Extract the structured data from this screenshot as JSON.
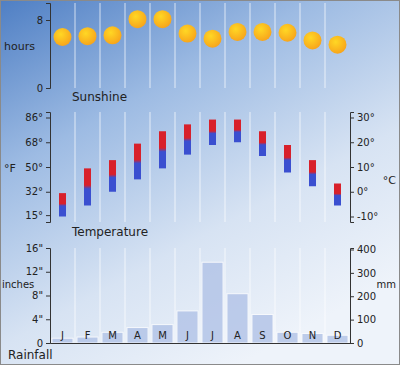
{
  "chart_data": [
    {
      "type": "scatter",
      "title": "Sunshine",
      "y_label": "hours",
      "values": [
        6.0,
        6.1,
        6.2,
        8.1,
        8.1,
        6.4,
        5.8,
        6.6,
        6.6,
        6.5,
        5.6,
        5.1
      ],
      "color": "#f7a21b",
      "marker": "circle",
      "ylim": [
        0,
        10
      ],
      "yticks": [
        0,
        8
      ],
      "grid": true
    },
    {
      "type": "range_bar",
      "title": "Temperature",
      "y_label": "°F",
      "y2_label": "°C",
      "series": [
        {
          "color": "#3a4fd0",
          "values": [
            14,
            22,
            32,
            41,
            49,
            59,
            66,
            68,
            58,
            46,
            36,
            22
          ]
        },
        {
          "color": "#d8202a",
          "values": [
            31,
            49,
            55,
            67,
            76,
            81,
            84.5,
            84.5,
            76,
            66,
            55,
            38
          ]
        }
      ],
      "ylim": [
        10,
        90
      ],
      "yticks": [
        {
          "value": 15,
          "label": "15°"
        },
        {
          "value": 32,
          "label": "32°"
        },
        {
          "value": 50,
          "label": "50°"
        },
        {
          "value": 68,
          "label": "68°"
        },
        {
          "value": 86,
          "label": "86°"
        }
      ],
      "y2lim": [
        -12.22,
        32.22
      ],
      "y2ticks": [
        {
          "value": -10,
          "label": "-10°"
        },
        {
          "value": 0,
          "label": "0°"
        },
        {
          "value": 10,
          "label": "10°"
        },
        {
          "value": 20,
          "label": "20°"
        },
        {
          "value": 30,
          "label": "30°"
        }
      ],
      "grid": true
    },
    {
      "type": "bar",
      "title": "Rainfall",
      "y_label": "inches",
      "y2_label": "mm",
      "categories": [
        "J",
        "F",
        "M",
        "A",
        "M",
        "J",
        "J",
        "A",
        "S",
        "O",
        "N",
        "D"
      ],
      "values": [
        0.8,
        1.0,
        1.8,
        2.6,
        3.1,
        5.4,
        13.6,
        8.3,
        4.8,
        1.8,
        1.6,
        1.3
      ],
      "color": "#b0c2e6",
      "ylim": [
        0,
        16
      ],
      "yticks": [
        0,
        {
          "value": 4,
          "label": "4\""
        },
        {
          "value": 8,
          "label": "8\""
        },
        {
          "value": 12,
          "label": "12\""
        },
        {
          "value": 16,
          "label": "16\""
        }
      ],
      "y2lim": [
        0,
        406.4
      ],
      "y2ticks": [
        0,
        100,
        200,
        300,
        400
      ],
      "grid": true
    }
  ]
}
